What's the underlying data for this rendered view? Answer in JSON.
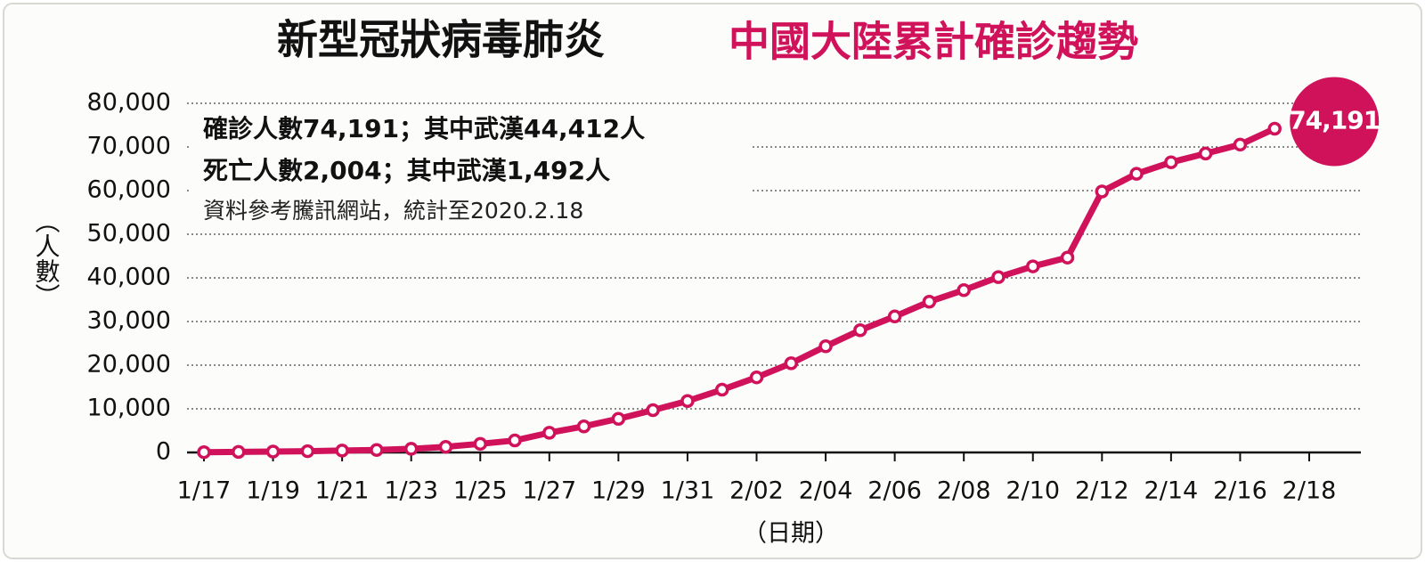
{
  "chart_data": {
    "type": "line",
    "title": "新型冠狀病毒肺炎",
    "subtitle": "中國大陸累計確診趨勢",
    "annotations": [
      "確診人數74,191；其中武漢44,412人",
      "死亡人數2,004；其中武漢1,492人",
      "資料參考騰訊網站，統計至2020.2.18"
    ],
    "y_label": "（人數）",
    "x_label": "（日期）",
    "categories": [
      "1/17",
      null,
      "1/19",
      null,
      "1/21",
      null,
      "1/23",
      null,
      "1/25",
      null,
      "1/27",
      null,
      "1/29",
      null,
      "1/31",
      null,
      "2/02",
      null,
      "2/04",
      null,
      "2/06",
      null,
      "2/08",
      null,
      "2/10",
      null,
      "2/12",
      null,
      "2/14",
      null,
      "2/16",
      null,
      "2/18"
    ],
    "series": [
      {
        "name": "累計確診",
        "color": "#d0125b",
        "values": [
          62,
          121,
          198,
          291,
          440,
          571,
          830,
          1287,
          1975,
          2744,
          4515,
          5974,
          7711,
          9692,
          11791,
          14380,
          17205,
          20438,
          24324,
          28018,
          31161,
          34546,
          37198,
          40171,
          42638,
          44653,
          59804,
          63851,
          66492,
          68500,
          70548,
          74191,
          null
        ],
        "value_labels": [
          null,
          null,
          null,
          null,
          null,
          null,
          null,
          null,
          null,
          null,
          null,
          null,
          null,
          null,
          null,
          null,
          null,
          null,
          null,
          null,
          null,
          null,
          null,
          null,
          null,
          null,
          null,
          null,
          null,
          null,
          null,
          "74,191",
          null
        ]
      }
    ],
    "ylim": [
      0,
      80000
    ],
    "yticks": [
      0,
      {
        "value": 10000,
        "label": "10,000"
      },
      {
        "value": 20000,
        "label": "20,000"
      },
      {
        "value": 30000,
        "label": "30,000"
      },
      {
        "value": 40000,
        "label": "40,000"
      },
      {
        "value": 50000,
        "label": "50,000"
      },
      {
        "value": 60000,
        "label": "60,000"
      },
      {
        "value": 70000,
        "label": "70,000"
      },
      {
        "value": 80000,
        "label": "80,000"
      }
    ],
    "grid": true
  }
}
